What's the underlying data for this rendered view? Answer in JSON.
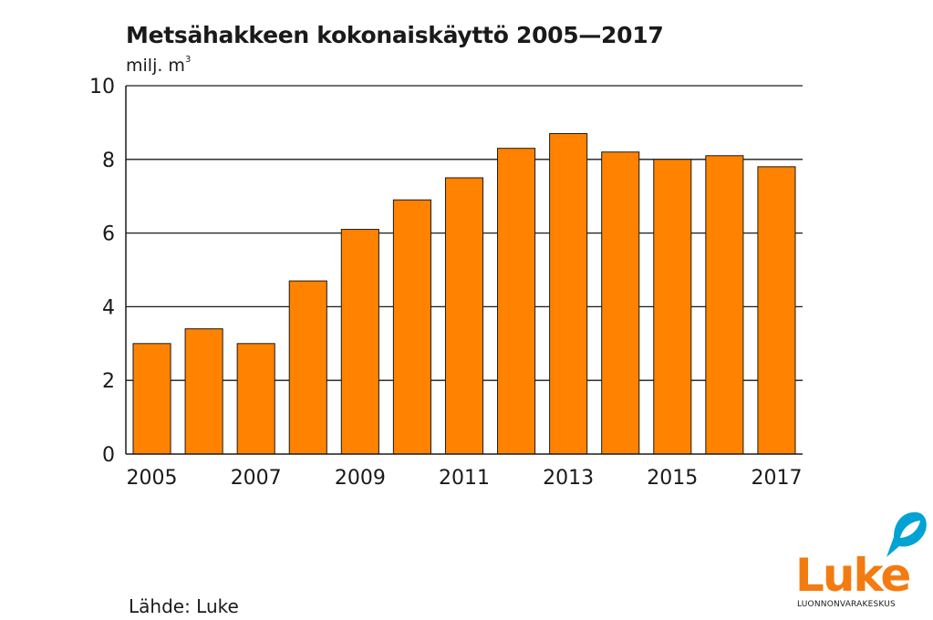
{
  "title": "Metsähakkeen kokonaiskäyttö 2005—2017",
  "unit_text": "milj. m",
  "unit_sup": "3",
  "source": "Lähde: Luke",
  "logo": {
    "brand": "Luke",
    "tagline": "LUONNONVARAKESKUS",
    "color": "#f47b10",
    "bubble_color": "#00a3d4"
  },
  "colors": {
    "bar": "#ff8200",
    "bar_stroke": "#1a1a1a",
    "grid": "#1a1a1a"
  },
  "chart_data": {
    "type": "bar",
    "title": "Metsähakkeen kokonaiskäyttö 2005—2017",
    "ylabel": "milj. m3",
    "categories": [
      "2005",
      "2006",
      "2007",
      "2008",
      "2009",
      "2010",
      "2011",
      "2012",
      "2013",
      "2014",
      "2015",
      "2016",
      "2017"
    ],
    "x_tick_labels": [
      "2005",
      "2007",
      "2009",
      "2011",
      "2013",
      "2015",
      "2017"
    ],
    "values": [
      3.0,
      3.4,
      3.0,
      4.7,
      6.1,
      6.9,
      7.5,
      8.3,
      8.7,
      8.2,
      8.0,
      8.1,
      7.8
    ],
    "ylim": [
      0,
      10
    ],
    "yticks": [
      0,
      2,
      4,
      6,
      8,
      10
    ],
    "grid": true,
    "legend": "none"
  }
}
